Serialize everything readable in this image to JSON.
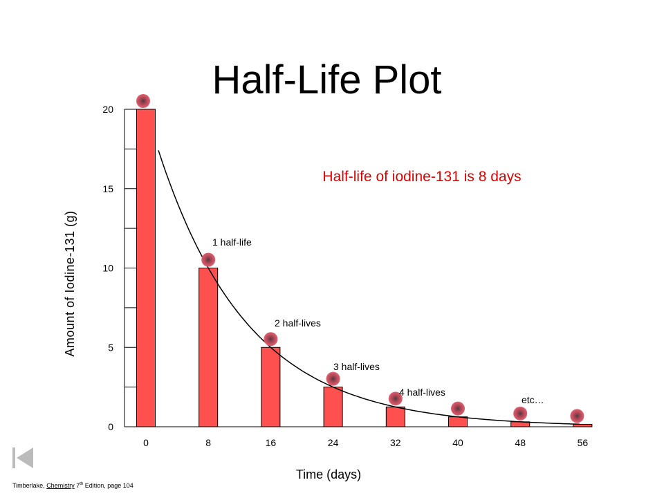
{
  "slide": {
    "title": "Half-Life Plot",
    "citation": {
      "author": "Timberlake, ",
      "book": "Chemistry",
      "edition_num": " 7",
      "edition_sup": "th",
      "rest": " Edition, page 104"
    }
  },
  "nav": {
    "back_icon": "skip-back-icon"
  },
  "colors": {
    "bar": "#ff5050",
    "annotation": "#e00000",
    "marker": "#e06070",
    "marker_center": "#404040"
  },
  "chart_data": {
    "type": "bar",
    "title": "Half-Life Plot",
    "xlabel": "Time (days)",
    "ylabel": "Amount of Iodine-131 (g)",
    "categories": [
      "0",
      "8",
      "16",
      "24",
      "32",
      "40",
      "48",
      "56"
    ],
    "x": [
      0,
      8,
      16,
      24,
      32,
      40,
      48,
      56
    ],
    "values": [
      20,
      10,
      5,
      2.5,
      1.25,
      0.625,
      0.3125,
      0.156
    ],
    "ylim": [
      0,
      20
    ],
    "yticks": [
      0,
      5,
      10,
      15,
      20
    ],
    "yticklabels": [
      "0",
      "5",
      "10",
      "15",
      "20"
    ],
    "grid": false,
    "decay_curve": true,
    "callout": "Half-life of iodine-131 is 8 days",
    "annotations": [
      {
        "text": "1 half-life",
        "x": 8
      },
      {
        "text": "2 half-lives",
        "x": 16
      },
      {
        "text": "3 half-lives",
        "x": 24
      },
      {
        "text": "4 half-lives",
        "x": 32
      },
      {
        "text": "etc…",
        "x": 48
      }
    ]
  }
}
